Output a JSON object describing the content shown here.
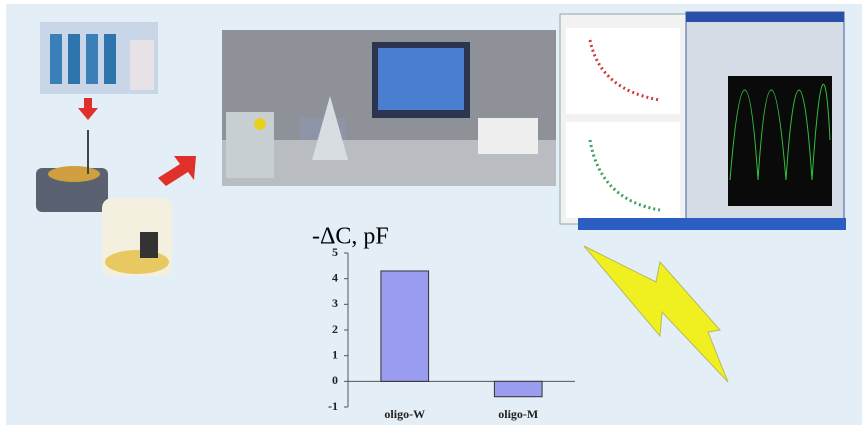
{
  "chart_data": {
    "type": "bar",
    "title": "-ΔC, pF",
    "categories": [
      "oligo-W",
      "oligo-M"
    ],
    "values": [
      4.3,
      -0.6
    ],
    "color": "#9a9cf0",
    "ylim": [
      -1,
      5
    ],
    "yticks": [
      -1,
      0,
      1,
      2,
      3,
      4,
      5
    ]
  }
}
